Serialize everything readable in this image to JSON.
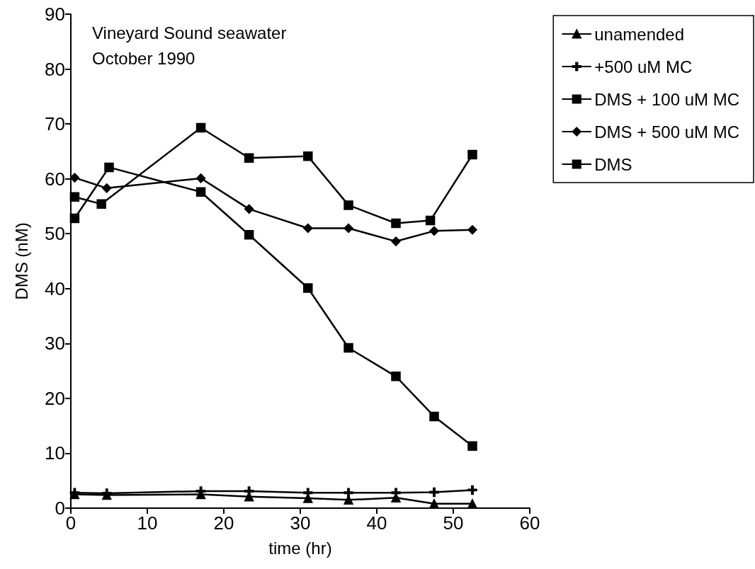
{
  "chart_data": {
    "type": "line",
    "xlabel": "time (hr)",
    "ylabel": "DMS (nM)",
    "annotations": [
      "Vineyard Sound seawater",
      "October 1990"
    ],
    "xlim": [
      0,
      60
    ],
    "xticks": [
      0,
      10,
      20,
      30,
      40,
      50,
      60
    ],
    "ylim": [
      0,
      90
    ],
    "yticks": [
      0,
      10,
      20,
      30,
      40,
      50,
      60,
      70,
      80,
      90
    ],
    "grid": false,
    "legend": "top right",
    "series": [
      {
        "name": "unamended",
        "color": "#000000",
        "marker": "triangle",
        "x": [
          0.5,
          4.7,
          17,
          23.3,
          31,
          36.3,
          42.5,
          47.5,
          52.5
        ],
        "values": [
          2.5,
          2.4,
          2.5,
          2.1,
          1.8,
          1.5,
          1.9,
          0.8,
          0.8
        ]
      },
      {
        "name": "+500 uM MC",
        "color": "#000000",
        "marker": "cross",
        "x": [
          0.5,
          4.7,
          17,
          23.3,
          31,
          36.3,
          42.5,
          47.5,
          52.5
        ],
        "values": [
          2.8,
          2.7,
          3.1,
          3.1,
          2.8,
          2.8,
          2.8,
          2.9,
          3.3
        ]
      },
      {
        "name": "DMS + 100 uM MC",
        "color": "#000000",
        "marker": "square",
        "x": [
          0.5,
          4,
          17,
          23.3,
          31,
          36.3,
          42.5,
          47,
          52.5
        ],
        "values": [
          56.7,
          55.4,
          69.3,
          63.8,
          64.1,
          55.2,
          51.9,
          52.4,
          64.4
        ]
      },
      {
        "name": "DMS + 500 uM MC",
        "color": "#000000",
        "marker": "diamond",
        "x": [
          0.5,
          4.7,
          17,
          23.3,
          31,
          36.3,
          42.5,
          47.5,
          52.5
        ],
        "values": [
          60.2,
          58.3,
          60.1,
          54.5,
          51,
          51,
          48.6,
          50.5,
          50.7
        ]
      },
      {
        "name": "DMS",
        "color": "#000000",
        "marker": "square",
        "x": [
          0.5,
          5,
          17,
          23.3,
          31,
          36.3,
          42.5,
          47.5,
          52.5
        ],
        "values": [
          52.8,
          62.1,
          57.6,
          49.8,
          40.1,
          29.2,
          24,
          16.7,
          11.3
        ]
      }
    ]
  }
}
